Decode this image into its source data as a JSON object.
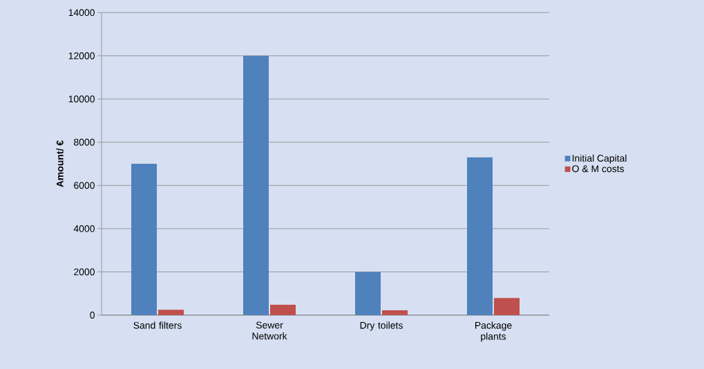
{
  "chart_data": {
    "type": "bar",
    "ylabel": "Amount/ €",
    "categories": [
      "Sand filters",
      "Sewer Network",
      "Dry toilets",
      "Package plants"
    ],
    "series": [
      {
        "name": "Initial Capital",
        "color": "#4f81bd",
        "values": [
          7000,
          12000,
          2000,
          7300
        ]
      },
      {
        "name": "O & M costs",
        "color": "#c0504d",
        "values": [
          250,
          480,
          220,
          790
        ]
      }
    ],
    "ylim": [
      0,
      14000
    ],
    "yticks": [
      0,
      2000,
      4000,
      6000,
      8000,
      10000,
      12000,
      14000
    ],
    "grid": "y",
    "legend": "right"
  }
}
